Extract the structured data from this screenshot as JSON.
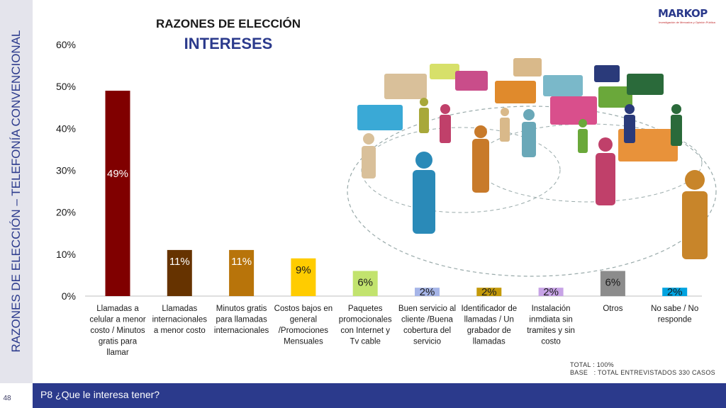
{
  "side_title": "RAZONES DE ELECCIÓN – TELEFONÍA CONVENCIONAL",
  "page_number": "48",
  "question": "P8 ¿Que le interesa tener?",
  "logo": {
    "name": "MARKOP",
    "tagline": "Investigación de Mercados y Opinión Pública"
  },
  "footnote": {
    "total": "TOTAL : 100%",
    "base": "BASE   : TOTAL ENTREVISTADOS 330 CASOS"
  },
  "chart_data": {
    "type": "bar",
    "title": "RAZONES DE ELECCIÓN",
    "subtitle": "INTERESES",
    "ylim": [
      0,
      60
    ],
    "yticks": [
      "0%",
      "10%",
      "20%",
      "30%",
      "40%",
      "50%",
      "60%"
    ],
    "grid": false,
    "categories": [
      "Llamadas a celular a menor costo / Minutos gratis para llamar",
      "Llamadas internacionales a menor costo",
      "Minutos gratis para llamadas internacionales",
      "Costos bajos en general /Promociones Mensuales",
      "Paquetes promocionales con Internet y Tv cable",
      "Buen servicio al cliente /Buena cobertura del servicio",
      "Identificador de llamadas / Un grabador de llamadas",
      "Instalación inmdiata sin tramites y sin costo",
      "Otros",
      "No sabe / No responde"
    ],
    "values": [
      49,
      11,
      11,
      9,
      6,
      2,
      2,
      2,
      6,
      2
    ],
    "labels": [
      "49%",
      "11%",
      "11%",
      "9%",
      "6%",
      "2%",
      "2%",
      "2%",
      "6%",
      "2%"
    ],
    "colors": [
      "#800000",
      "#663300",
      "#b8740a",
      "#ffcc00",
      "#c2e36e",
      "#a6b5e8",
      "#c49a0a",
      "#c7a3e6",
      "#8c8c8c",
      "#00a3e0"
    ],
    "label_colors": [
      "#ffffff",
      "#ffffff",
      "#ffffff",
      "#1a1a1a",
      "#1a1a1a",
      "#1a1a1a",
      "#1a1a1a",
      "#1a1a1a",
      "#1a1a1a",
      "#1a1a1a"
    ]
  }
}
